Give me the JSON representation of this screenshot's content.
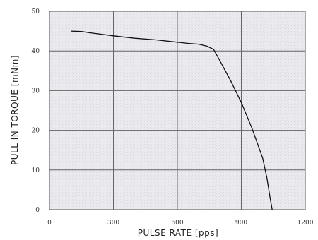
{
  "chart_data": {
    "type": "line",
    "title": "",
    "xlabel": "PULSE RATE  [pps]",
    "ylabel": "PULL IN TORQUE  [mNm]",
    "xlim": [
      0,
      1200
    ],
    "ylim": [
      0,
      50
    ],
    "x_ticks": [
      "0",
      "300",
      "600",
      "900",
      "1200"
    ],
    "y_ticks": [
      "0",
      "10",
      "20",
      "30",
      "40",
      "50"
    ],
    "grid": true,
    "series": [
      {
        "x": [
          100,
          150,
          200,
          300,
          400,
          500,
          600,
          650,
          700,
          740,
          770,
          800,
          850,
          900,
          950,
          1000,
          1020,
          1035,
          1045
        ],
        "y": [
          45.0,
          44.9,
          44.5,
          43.8,
          43.2,
          42.8,
          42.2,
          41.9,
          41.7,
          41.2,
          40.4,
          37.5,
          32.5,
          27.0,
          20.5,
          13.0,
          8.0,
          3.0,
          0.0
        ]
      }
    ]
  }
}
